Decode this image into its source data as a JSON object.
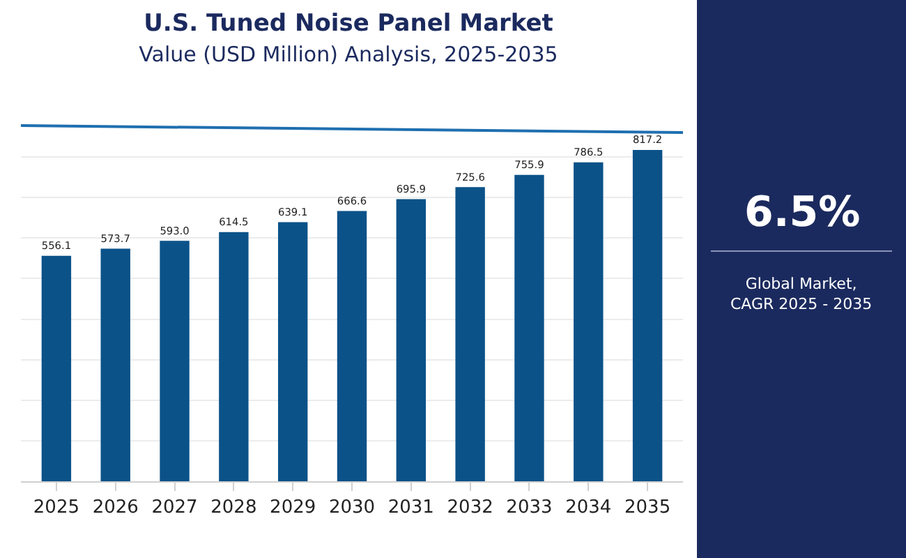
{
  "chart_data": {
    "type": "bar",
    "title": "U.S. Tuned Noise Panel Market",
    "subtitle": "Value (USD Million) Analysis, 2025-2035",
    "categories": [
      "2025",
      "2026",
      "2027",
      "2028",
      "2029",
      "2030",
      "2031",
      "2032",
      "2033",
      "2034",
      "2035"
    ],
    "values": [
      556.1,
      573.7,
      593.0,
      614.5,
      639.1,
      666.6,
      695.9,
      725.6,
      755.9,
      786.5,
      817.2
    ],
    "color": "#0b5289",
    "value_labels": [
      "556.1",
      "573.7",
      "593.0",
      "614.5",
      "639.1",
      "666.6",
      "695.9",
      "725.6",
      "755.9",
      "786.5",
      "817.2"
    ],
    "grid": "y",
    "tick_labels": "x",
    "yticks": [
      {
        "value": 0,
        "label": null
      },
      {
        "value": 100,
        "label": null
      },
      {
        "value": 200,
        "label": null
      },
      {
        "value": 300,
        "label": null
      },
      {
        "value": 400,
        "label": null
      },
      {
        "value": 500,
        "label": null
      },
      {
        "value": 600,
        "label": null
      },
      {
        "value": 700,
        "label": null
      },
      {
        "value": 800,
        "label": null
      }
    ],
    "annotations": [
      "6.5%",
      "Global Market,\nCAGR 2025 - 2035"
    ]
  }
}
